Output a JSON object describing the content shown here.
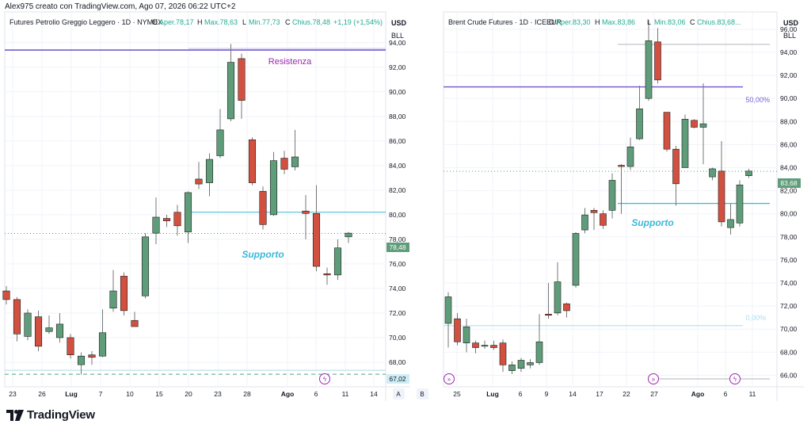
{
  "caption": "Alex975 creato con TradingView.com, Ago 07, 2026 06:22 UTC+2",
  "brand": "TradingView",
  "colors": {
    "up": "#5f9d7a",
    "down": "#d2503f",
    "wick": "#777777",
    "resistance": "#6a4fc9",
    "support": "#3bb8d6",
    "fib": "#7a5fd1",
    "fib_low": "#aadcec",
    "grid": "#f0f3fa",
    "axis_text": "#131722",
    "price_tag_bg": "#5f9d7a"
  },
  "chart_data": [
    {
      "type": "candlestick",
      "title": "Futures Petrolio Greggio Leggero · 1D · NYMEX",
      "ohlc_header": {
        "o_label": "O",
        "o": "Aper.78,17",
        "h_label": "H",
        "h": "Max.78,63",
        "l_label": "L",
        "l": "Min.77,73",
        "c_label": "C",
        "c": "Chius.78,48",
        "change": "+1,19 (+1,54%)"
      },
      "currency": "USD",
      "unit": "BLL",
      "ylim": [
        66,
        96.5
      ],
      "y_ticks": [
        "94,00",
        "92,00",
        "90,00",
        "88,00",
        "86,00",
        "84,00",
        "82,00",
        "80,00",
        "78,00",
        "76,00",
        "74,00",
        "72,00",
        "70,00",
        "68,00"
      ],
      "x_ticks": [
        "23",
        "26",
        "Lug",
        "7",
        "10",
        "15",
        "20",
        "23",
        "28",
        "Ago",
        "6",
        "11",
        "14"
      ],
      "last_price": "78,48",
      "low_price_tag": "67,02",
      "axis_badge": "A",
      "annotations": [
        {
          "label": "Resistenza",
          "price": 93.4
        },
        {
          "label": "Supporto",
          "price": 80.2
        }
      ],
      "candles": [
        {
          "o": 73.8,
          "h": 74.2,
          "l": 72.7,
          "c": 73.1
        },
        {
          "o": 73.1,
          "h": 73.3,
          "l": 69.7,
          "c": 70.3
        },
        {
          "o": 70.1,
          "h": 72.3,
          "l": 69.8,
          "c": 72.0
        },
        {
          "o": 71.7,
          "h": 72.2,
          "l": 68.9,
          "c": 69.3
        },
        {
          "o": 70.5,
          "h": 71.8,
          "l": 70.3,
          "c": 70.8
        },
        {
          "o": 70.0,
          "h": 72.0,
          "l": 69.6,
          "c": 71.1
        },
        {
          "o": 70.0,
          "h": 70.3,
          "l": 68.3,
          "c": 68.6
        },
        {
          "o": 67.8,
          "h": 68.8,
          "l": 67.0,
          "c": 68.5
        },
        {
          "o": 68.6,
          "h": 68.9,
          "l": 67.8,
          "c": 68.4
        },
        {
          "o": 68.5,
          "h": 72.3,
          "l": 68.4,
          "c": 70.4
        },
        {
          "o": 72.4,
          "h": 75.5,
          "l": 72.1,
          "c": 73.8
        },
        {
          "o": 75.0,
          "h": 75.3,
          "l": 71.8,
          "c": 72.2
        },
        {
          "o": 71.4,
          "h": 72.1,
          "l": 70.9,
          "c": 70.9
        },
        {
          "o": 73.4,
          "h": 78.5,
          "l": 73.2,
          "c": 78.2
        },
        {
          "o": 78.5,
          "h": 81.4,
          "l": 77.6,
          "c": 79.8
        },
        {
          "o": 79.7,
          "h": 80.0,
          "l": 79.0,
          "c": 79.5
        },
        {
          "o": 80.2,
          "h": 80.8,
          "l": 78.3,
          "c": 79.1
        },
        {
          "o": 78.6,
          "h": 81.9,
          "l": 77.7,
          "c": 81.8
        },
        {
          "o": 82.9,
          "h": 84.3,
          "l": 82.1,
          "c": 82.5
        },
        {
          "o": 82.6,
          "h": 85.0,
          "l": 81.5,
          "c": 84.5
        },
        {
          "o": 84.8,
          "h": 88.6,
          "l": 84.6,
          "c": 86.9
        },
        {
          "o": 87.8,
          "h": 93.9,
          "l": 87.6,
          "c": 92.4
        },
        {
          "o": 92.7,
          "h": 93.1,
          "l": 87.8,
          "c": 89.3
        },
        {
          "o": 86.1,
          "h": 86.3,
          "l": 82.4,
          "c": 82.6
        },
        {
          "o": 81.9,
          "h": 82.3,
          "l": 78.8,
          "c": 79.2
        },
        {
          "o": 80.0,
          "h": 85.1,
          "l": 79.9,
          "c": 84.4
        },
        {
          "o": 84.6,
          "h": 85.2,
          "l": 83.3,
          "c": 83.7
        },
        {
          "o": 83.9,
          "h": 86.9,
          "l": 83.6,
          "c": 84.7
        },
        {
          "o": 80.3,
          "h": 81.6,
          "l": 78.0,
          "c": 80.1
        },
        {
          "o": 80.1,
          "h": 82.4,
          "l": 75.4,
          "c": 75.8
        },
        {
          "o": 75.2,
          "h": 75.7,
          "l": 74.3,
          "c": 75.1
        },
        {
          "o": 75.1,
          "h": 78.0,
          "l": 74.7,
          "c": 77.3
        },
        {
          "o": 78.2,
          "h": 78.6,
          "l": 77.7,
          "c": 78.5
        }
      ]
    },
    {
      "type": "candlestick",
      "title": "Brent Crude Futures · 1D · ICEEUR",
      "ohlc_header": {
        "o_label": "O",
        "o": "Aper.83,30",
        "h_label": "H",
        "h": "Max.83,86",
        "l_label": "L",
        "l": "Min.83,06",
        "c_label": "C",
        "c": "Chius.83,68..."
      },
      "currency": "USD",
      "unit": "BLL",
      "ylim": [
        65,
        97.5
      ],
      "y_ticks": [
        "96,00",
        "94,00",
        "92,00",
        "90,00",
        "88,00",
        "86,00",
        "84,00",
        "82,00",
        "80,00",
        "78,00",
        "76,00",
        "74,00",
        "72,00",
        "70,00",
        "68,00",
        "66,00"
      ],
      "x_ticks": [
        "25",
        "Lug",
        "6",
        "9",
        "14",
        "17",
        "22",
        "27",
        "Ago",
        "6",
        "11"
      ],
      "last_price": "83,68",
      "axis_badge": "B",
      "fib_levels": [
        {
          "label": "50,00%",
          "price": 91.0
        },
        {
          "label": "0,00%",
          "price": 70.3
        }
      ],
      "annotations": [
        {
          "label": "Supporto",
          "price": 80.9
        }
      ],
      "candles": [
        {
          "o": 70.5,
          "h": 73.2,
          "l": 68.4,
          "c": 72.8
        },
        {
          "o": 70.9,
          "h": 71.4,
          "l": 68.6,
          "c": 68.9
        },
        {
          "o": 68.8,
          "h": 70.9,
          "l": 68.0,
          "c": 70.2
        },
        {
          "o": 68.8,
          "h": 69.0,
          "l": 67.9,
          "c": 68.4
        },
        {
          "o": 68.6,
          "h": 69.0,
          "l": 68.3,
          "c": 68.6
        },
        {
          "o": 68.6,
          "h": 69.0,
          "l": 68.2,
          "c": 68.4
        },
        {
          "o": 68.8,
          "h": 69.1,
          "l": 66.3,
          "c": 66.9
        },
        {
          "o": 66.4,
          "h": 67.2,
          "l": 66.1,
          "c": 66.9
        },
        {
          "o": 66.6,
          "h": 67.5,
          "l": 66.3,
          "c": 67.3
        },
        {
          "o": 66.9,
          "h": 67.4,
          "l": 66.6,
          "c": 67.1
        },
        {
          "o": 67.1,
          "h": 71.3,
          "l": 66.9,
          "c": 68.9
        },
        {
          "o": 71.3,
          "h": 74.0,
          "l": 70.9,
          "c": 71.2
        },
        {
          "o": 71.4,
          "h": 75.8,
          "l": 71.2,
          "c": 74.1
        },
        {
          "o": 72.2,
          "h": 72.3,
          "l": 71.0,
          "c": 71.6
        },
        {
          "o": 73.8,
          "h": 78.4,
          "l": 73.6,
          "c": 78.3
        },
        {
          "o": 78.6,
          "h": 80.5,
          "l": 78.3,
          "c": 79.9
        },
        {
          "o": 80.3,
          "h": 80.5,
          "l": 78.6,
          "c": 80.1
        },
        {
          "o": 80.0,
          "h": 80.3,
          "l": 78.7,
          "c": 79.0
        },
        {
          "o": 80.3,
          "h": 83.5,
          "l": 79.6,
          "c": 82.9
        },
        {
          "o": 84.2,
          "h": 84.3,
          "l": 80.0,
          "c": 84.1
        },
        {
          "o": 84.1,
          "h": 86.6,
          "l": 83.8,
          "c": 85.8
        },
        {
          "o": 86.5,
          "h": 91.1,
          "l": 86.4,
          "c": 89.1
        },
        {
          "o": 90.0,
          "h": 96.8,
          "l": 89.8,
          "c": 95.0
        },
        {
          "o": 94.9,
          "h": 96.1,
          "l": 91.3,
          "c": 91.6
        },
        {
          "o": 88.8,
          "h": 88.8,
          "l": 85.4,
          "c": 85.6
        },
        {
          "o": 85.6,
          "h": 85.9,
          "l": 80.7,
          "c": 82.6
        },
        {
          "o": 84.0,
          "h": 88.6,
          "l": 84.0,
          "c": 88.2
        },
        {
          "o": 88.1,
          "h": 88.2,
          "l": 87.4,
          "c": 87.5
        },
        {
          "o": 87.5,
          "h": 91.3,
          "l": 84.3,
          "c": 87.8
        },
        {
          "o": 83.2,
          "h": 84.0,
          "l": 82.9,
          "c": 83.9
        },
        {
          "o": 83.7,
          "h": 86.3,
          "l": 78.9,
          "c": 79.3
        },
        {
          "o": 78.8,
          "h": 80.9,
          "l": 78.2,
          "c": 79.5
        },
        {
          "o": 79.2,
          "h": 82.9,
          "l": 78.9,
          "c": 82.5
        },
        {
          "o": 83.3,
          "h": 83.9,
          "l": 83.1,
          "c": 83.7
        }
      ]
    }
  ]
}
